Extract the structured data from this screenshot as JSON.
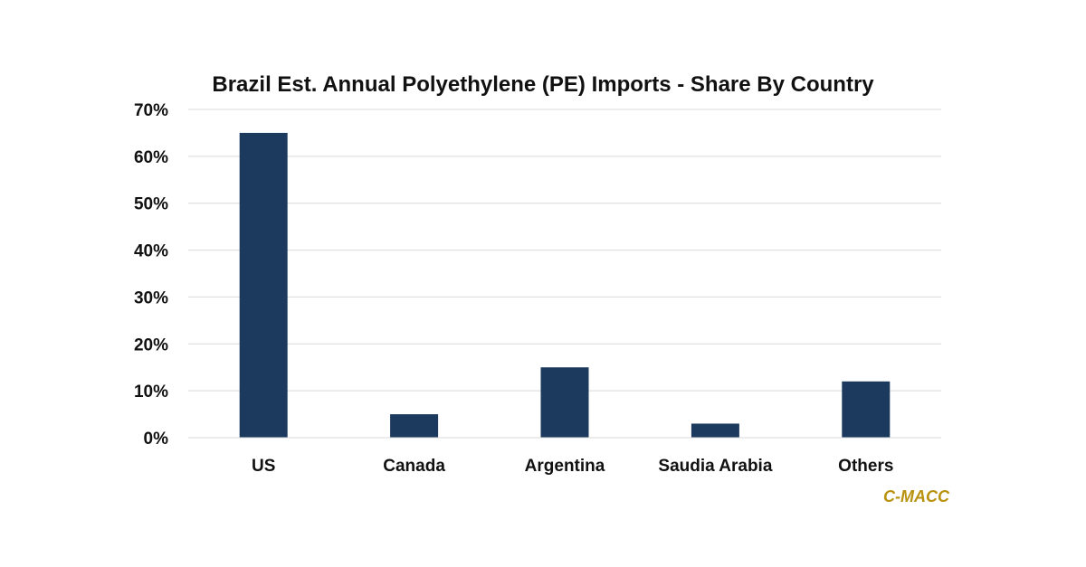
{
  "chart_data": {
    "type": "bar",
    "title": "Brazil Est. Annual Polyethylene (PE) Imports - Share By Country",
    "categories": [
      "US",
      "Canada",
      "Argentina",
      "Saudia Arabia",
      "Others"
    ],
    "values": [
      65,
      5,
      15,
      3,
      12
    ],
    "ylim": [
      0,
      70
    ],
    "yticks": [
      0,
      10,
      20,
      30,
      40,
      50,
      60,
      70
    ],
    "ytick_labels": [
      "0%",
      "10%",
      "20%",
      "30%",
      "40%",
      "50%",
      "60%",
      "70%"
    ],
    "xlabel": "",
    "ylabel": "",
    "grid": true,
    "legend": "none",
    "bar_color": "#1b3a5e",
    "gridline_color": "#d9d9d9",
    "brand": {
      "text": "C-MACC",
      "color": "#b8920e"
    }
  }
}
